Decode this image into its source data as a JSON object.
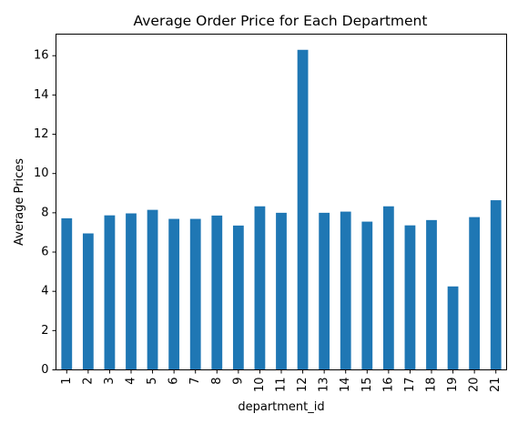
{
  "chart_data": {
    "type": "bar",
    "title": "Average Order Price for Each Department",
    "xlabel": "department_id",
    "ylabel": "Average Prices",
    "categories": [
      "1",
      "2",
      "3",
      "4",
      "5",
      "6",
      "7",
      "8",
      "9",
      "10",
      "11",
      "12",
      "13",
      "14",
      "15",
      "16",
      "17",
      "18",
      "19",
      "20",
      "21"
    ],
    "values": [
      7.72,
      6.95,
      7.87,
      7.97,
      8.15,
      7.69,
      7.69,
      7.86,
      7.35,
      8.33,
      8.0,
      16.3,
      8.0,
      8.06,
      7.55,
      8.33,
      7.36,
      7.63,
      4.25,
      7.78,
      8.64
    ],
    "ylim": [
      0,
      17.1
    ],
    "yticks": [
      "0",
      "2",
      "4",
      "6",
      "8",
      "10",
      "12",
      "14",
      "16"
    ],
    "grid": false,
    "bar_color": "#1f77b4"
  }
}
